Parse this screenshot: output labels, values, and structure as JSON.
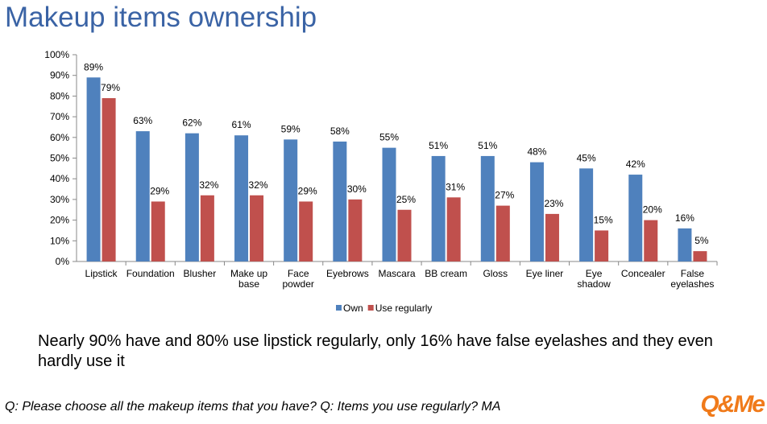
{
  "chart_data": {
    "type": "bar",
    "title": "Makeup items ownership",
    "categories": [
      "Lipstick",
      "Foundation",
      "Blusher",
      "Make up base",
      "Face powder",
      "Eyebrows",
      "Mascara",
      "BB cream",
      "Gloss",
      "Eye liner",
      "Eye shadow",
      "Concealer",
      "False eyelashes"
    ],
    "series": [
      {
        "name": "Own",
        "color": "#4f81bd",
        "values": [
          89,
          63,
          62,
          61,
          59,
          58,
          55,
          51,
          51,
          48,
          45,
          42,
          16
        ],
        "value_labels": [
          "89%",
          "63%",
          "62%",
          "61%",
          "59%",
          "58%",
          "55%",
          "51%",
          "51%",
          "48%",
          "45%",
          "42%",
          "16%"
        ]
      },
      {
        "name": "Use regularly",
        "color": "#c0504d",
        "values": [
          79,
          29,
          32,
          32,
          29,
          30,
          25,
          31,
          27,
          23,
          15,
          20,
          5
        ],
        "value_labels": [
          "79%",
          "29%",
          "32%",
          "32%",
          "29%",
          "30%",
          "25%",
          "31%",
          "27%",
          "23%",
          "15%",
          "20%",
          "5%"
        ]
      }
    ],
    "ylim": [
      0,
      100
    ],
    "yticks": [
      {
        "value": 0,
        "label": "0%"
      },
      {
        "value": 10,
        "label": "10%"
      },
      {
        "value": 20,
        "label": "20%"
      },
      {
        "value": 30,
        "label": "30%"
      },
      {
        "value": 40,
        "label": "40%"
      },
      {
        "value": 50,
        "label": "50%"
      },
      {
        "value": 60,
        "label": "60%"
      },
      {
        "value": 70,
        "label": "70%"
      },
      {
        "value": 80,
        "label": "80%"
      },
      {
        "value": 90,
        "label": "90%"
      },
      {
        "value": 100,
        "label": "100%"
      }
    ],
    "grid": false,
    "legend": "bottom"
  },
  "slide": {
    "summary": "Nearly 90% have and 80% use lipstick regularly, only 16% have false eyelashes and they even hardly use it",
    "footnote": "Q: Please choose all the makeup items that you have? Q: Items you use regularly? MA",
    "logo": "Q&Me"
  }
}
